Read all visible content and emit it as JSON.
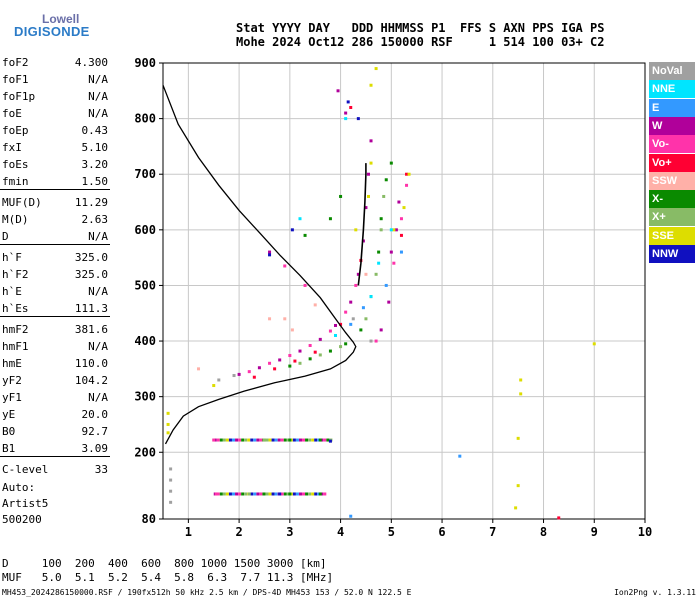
{
  "logo": {
    "line1": "Lowell",
    "line2": "DIGISONDE"
  },
  "header": {
    "row1": "Stat YYYY DAY   DDD HHMMSS P1  FFS S AXN PPS IGA PS",
    "row2": "Mohe 2024 Oct12 286 150000 RSF     1 514 100 03+ C2"
  },
  "params": [
    {
      "label": "foF2",
      "value": "4.300"
    },
    {
      "label": "foF1",
      "value": "N/A"
    },
    {
      "label": "foF1p",
      "value": "N/A"
    },
    {
      "label": "foE",
      "value": "N/A"
    },
    {
      "label": "foEp",
      "value": "0.43"
    },
    {
      "label": "fxI",
      "value": "5.10"
    },
    {
      "label": "foEs",
      "value": "3.20"
    },
    {
      "label": "fmin",
      "value": "1.50"
    },
    {
      "label": "MUF(D)",
      "value": "11.29"
    },
    {
      "label": "M(D)",
      "value": "2.63"
    },
    {
      "label": "D",
      "value": "N/A"
    },
    {
      "label": "h`F",
      "value": "325.0"
    },
    {
      "label": "h`F2",
      "value": "325.0"
    },
    {
      "label": "h`E",
      "value": "N/A"
    },
    {
      "label": "h`Es",
      "value": "111.3"
    },
    {
      "label": "hmF2",
      "value": "381.6"
    },
    {
      "label": "hmF1",
      "value": "N/A"
    },
    {
      "label": "hmE",
      "value": "110.0"
    },
    {
      "label": "yF2",
      "value": "104.2"
    },
    {
      "label": "yF1",
      "value": "N/A"
    },
    {
      "label": "yE",
      "value": "20.0"
    },
    {
      "label": "B0",
      "value": "92.7"
    },
    {
      "label": "B1",
      "value": "3.09"
    },
    {
      "label": "C-level",
      "value": "33"
    }
  ],
  "autoscale": {
    "line1": "Auto:",
    "line2": "Artist5",
    "line3": "500200"
  },
  "legend": [
    {
      "label": "NoVal",
      "bg": "#a0a0a0",
      "fg": "#ffffff"
    },
    {
      "label": "NNE",
      "bg": "#00e5ff",
      "fg": "#ffffff"
    },
    {
      "label": "E",
      "bg": "#3399ff",
      "fg": "#ffffff"
    },
    {
      "label": "W",
      "bg": "#b0009a",
      "fg": "#ffffff"
    },
    {
      "label": "Vo-",
      "bg": "#ff33aa",
      "fg": "#ffffff"
    },
    {
      "label": "Vo+",
      "bg": "#ff0033",
      "fg": "#ffffff"
    },
    {
      "label": "SSW",
      "bg": "#ffb0a8",
      "fg": "#ffffff"
    },
    {
      "label": "X-",
      "bg": "#0a8a00",
      "fg": "#ffffff"
    },
    {
      "label": "X+",
      "bg": "#88bb66",
      "fg": "#ffffff"
    },
    {
      "label": "SSE",
      "bg": "#dddd00",
      "fg": "#ffffff"
    },
    {
      "label": "NNW",
      "bg": "#1010c0",
      "fg": "#ffffff"
    }
  ],
  "distance": {
    "row1": "D     100  200  400  600  800 1000 1500 3000 [km]",
    "row2": "MUF   5.0  5.1  5.2  5.4  5.8  6.3  7.7 11.3 [MHz]"
  },
  "footer": {
    "left": "MH453_2024286150000.RSF / 190fx512h 50 kHz 2.5 km / DPS-4D MH453 153 / 52.0 N 122.5 E",
    "right": "Ion2Png v. 1.3.11"
  },
  "chart_data": {
    "type": "scatter",
    "title": "",
    "xlabel": "",
    "ylabel": "",
    "xlim": [
      0.5,
      10
    ],
    "ylim": [
      80,
      900
    ],
    "x_ticks": [
      1,
      2,
      3,
      4,
      5,
      6,
      7,
      8,
      9,
      10
    ],
    "y_ticks": [
      80,
      200,
      300,
      400,
      500,
      600,
      700,
      800,
      900
    ],
    "grid": true,
    "legend_position": "right",
    "series": [
      {
        "legend": "W",
        "color": "#b0009a",
        "points": [
          [
            2.0,
            340
          ],
          [
            2.4,
            352
          ],
          [
            2.8,
            366
          ],
          [
            3.2,
            382
          ],
          [
            3.6,
            403
          ],
          [
            3.9,
            428
          ],
          [
            4.2,
            470
          ],
          [
            4.35,
            520
          ],
          [
            4.45,
            580
          ],
          [
            4.5,
            640
          ],
          [
            4.55,
            700
          ],
          [
            4.6,
            760
          ],
          [
            5.0,
            560
          ],
          [
            5.1,
            600
          ],
          [
            5.15,
            650
          ],
          [
            4.8,
            420
          ],
          [
            4.95,
            470
          ],
          [
            3.95,
            850
          ],
          [
            4.1,
            810
          ],
          [
            2.6,
            560
          ]
        ]
      },
      {
        "legend": "Vo-",
        "color": "#ff33aa",
        "points": [
          [
            2.2,
            345
          ],
          [
            2.6,
            360
          ],
          [
            3.0,
            374
          ],
          [
            3.4,
            392
          ],
          [
            3.8,
            418
          ],
          [
            4.1,
            452
          ],
          [
            4.3,
            500
          ],
          [
            5.05,
            540
          ],
          [
            5.2,
            620
          ],
          [
            5.3,
            680
          ],
          [
            4.7,
            400
          ],
          [
            2.9,
            535
          ],
          [
            3.3,
            500
          ],
          [
            1.55,
            125
          ],
          [
            1.5,
            222
          ]
        ]
      },
      {
        "legend": "Vo+",
        "color": "#ff0033",
        "points": [
          [
            2.3,
            335
          ],
          [
            2.7,
            350
          ],
          [
            3.1,
            364
          ],
          [
            3.5,
            380
          ],
          [
            4.0,
            430
          ],
          [
            4.4,
            545
          ],
          [
            5.2,
            590
          ],
          [
            5.3,
            700
          ],
          [
            8.3,
            82
          ],
          [
            4.2,
            820
          ]
        ]
      },
      {
        "legend": "X-",
        "color": "#0a8a00",
        "points": [
          [
            3.0,
            355
          ],
          [
            3.4,
            368
          ],
          [
            3.8,
            382
          ],
          [
            4.1,
            395
          ],
          [
            4.4,
            420
          ],
          [
            4.6,
            480
          ],
          [
            4.75,
            560
          ],
          [
            4.8,
            620
          ],
          [
            4.9,
            690
          ],
          [
            3.3,
            590
          ],
          [
            3.8,
            620
          ],
          [
            4.0,
            660
          ],
          [
            5.0,
            720
          ],
          [
            3.6,
            222
          ],
          [
            3.0,
            222
          ],
          [
            3.0,
            125
          ],
          [
            3.6,
            125
          ]
        ]
      },
      {
        "legend": "X+",
        "color": "#88bb66",
        "points": [
          [
            3.2,
            360
          ],
          [
            3.6,
            375
          ],
          [
            4.0,
            390
          ],
          [
            4.5,
            440
          ],
          [
            4.7,
            520
          ],
          [
            4.8,
            600
          ],
          [
            4.85,
            660
          ],
          [
            2.5,
            222
          ],
          [
            2.2,
            125
          ]
        ]
      },
      {
        "legend": "SSE",
        "color": "#dddd00",
        "points": [
          [
            4.3,
            600
          ],
          [
            4.55,
            660
          ],
          [
            4.6,
            720
          ],
          [
            5.05,
            600
          ],
          [
            5.25,
            640
          ],
          [
            5.35,
            700
          ],
          [
            4.6,
            860
          ],
          [
            4.7,
            890
          ],
          [
            0.6,
            270
          ],
          [
            0.6,
            250
          ],
          [
            0.6,
            235
          ],
          [
            7.55,
            330
          ],
          [
            7.55,
            305
          ],
          [
            7.5,
            225
          ],
          [
            7.5,
            140
          ],
          [
            7.45,
            100
          ],
          [
            9.0,
            395
          ],
          [
            1.5,
            320
          ]
        ]
      },
      {
        "legend": "NNE",
        "color": "#00e5ff",
        "points": [
          [
            4.6,
            480
          ],
          [
            4.75,
            540
          ],
          [
            5.0,
            600
          ],
          [
            3.9,
            410
          ],
          [
            4.1,
            800
          ],
          [
            3.2,
            620
          ]
        ]
      },
      {
        "legend": "E",
        "color": "#3399ff",
        "points": [
          [
            4.45,
            460
          ],
          [
            4.9,
            500
          ],
          [
            5.2,
            560
          ],
          [
            4.2,
            430
          ],
          [
            6.35,
            193
          ],
          [
            4.2,
            85
          ]
        ]
      },
      {
        "legend": "NNW",
        "color": "#1010c0",
        "points": [
          [
            4.35,
            800
          ],
          [
            2.6,
            555
          ],
          [
            4.15,
            830
          ],
          [
            3.05,
            600
          ],
          [
            3.8,
            220
          ],
          [
            2.8,
            125
          ]
        ]
      },
      {
        "legend": "SSW",
        "color": "#ffb0a8",
        "points": [
          [
            3.5,
            465
          ],
          [
            2.9,
            440
          ],
          [
            3.05,
            420
          ],
          [
            2.6,
            440
          ],
          [
            1.2,
            350
          ],
          [
            4.5,
            520
          ]
        ]
      },
      {
        "legend": "NoVal",
        "color": "#a0a0a0",
        "points": [
          [
            1.6,
            330
          ],
          [
            1.9,
            338
          ],
          [
            4.25,
            440
          ],
          [
            0.65,
            170
          ],
          [
            0.65,
            150
          ],
          [
            0.65,
            130
          ],
          [
            0.65,
            110
          ],
          [
            4.6,
            400
          ]
        ]
      }
    ],
    "es_traces": [
      {
        "y": 222,
        "x_from": 1.5,
        "x_to": 3.8
      },
      {
        "y": 125,
        "x_from": 1.5,
        "x_to": 3.7
      }
    ],
    "profile": {
      "color": "#000000",
      "points": [
        [
          0.5,
          860
        ],
        [
          0.8,
          790
        ],
        [
          1.2,
          730
        ],
        [
          1.6,
          680
        ],
        [
          2.0,
          635
        ],
        [
          2.4,
          595
        ],
        [
          2.8,
          555
        ],
        [
          3.2,
          518
        ],
        [
          3.6,
          478
        ],
        [
          3.9,
          440
        ],
        [
          4.1,
          415
        ],
        [
          4.25,
          398
        ],
        [
          4.3,
          390
        ],
        [
          4.25,
          380
        ],
        [
          4.1,
          365
        ],
        [
          3.8,
          350
        ],
        [
          3.3,
          337
        ],
        [
          2.7,
          325
        ],
        [
          2.1,
          310
        ],
        [
          1.6,
          295
        ],
        [
          1.2,
          282
        ],
        [
          0.9,
          265
        ],
        [
          0.7,
          240
        ],
        [
          0.55,
          215
        ]
      ]
    },
    "trace": {
      "color": "#000000",
      "points": [
        [
          4.35,
          500
        ],
        [
          4.4,
          540
        ],
        [
          4.45,
          600
        ],
        [
          4.48,
          650
        ],
        [
          4.5,
          700
        ],
        [
          4.5,
          720
        ]
      ]
    }
  }
}
